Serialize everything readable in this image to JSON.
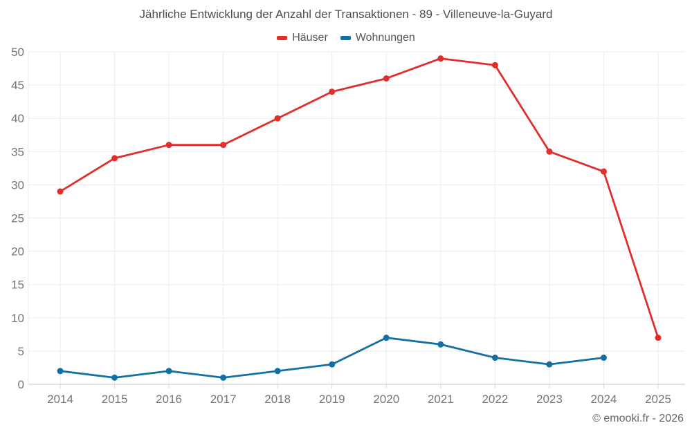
{
  "footer": {
    "copyright": "© emooki.fr - 2026"
  },
  "chart_data": {
    "type": "line",
    "title": "Jährliche Entwicklung der Anzahl der Transaktionen - 89 - Villeneuve-la-Guyard",
    "categories": [
      "2014",
      "2015",
      "2016",
      "2017",
      "2018",
      "2019",
      "2020",
      "2021",
      "2022",
      "2023",
      "2024",
      "2025"
    ],
    "series": [
      {
        "name": "Häuser",
        "color": "#e22d2d",
        "values": [
          29,
          34,
          36,
          36,
          40,
          44,
          46,
          49,
          48,
          35,
          32,
          7
        ]
      },
      {
        "name": "Wohnungen",
        "color": "#1270a2",
        "values": [
          2,
          1,
          2,
          1,
          2,
          3,
          7,
          6,
          4,
          3,
          4,
          null
        ]
      }
    ],
    "xlabel": "",
    "ylabel": "",
    "ylim": [
      0,
      50
    ],
    "ytick_step": 5,
    "grid": true,
    "legend_position": "top",
    "gridline_color": "#ebebeb",
    "axis_line_color": "#c9c9c9",
    "tick_label_color": "#757575"
  }
}
